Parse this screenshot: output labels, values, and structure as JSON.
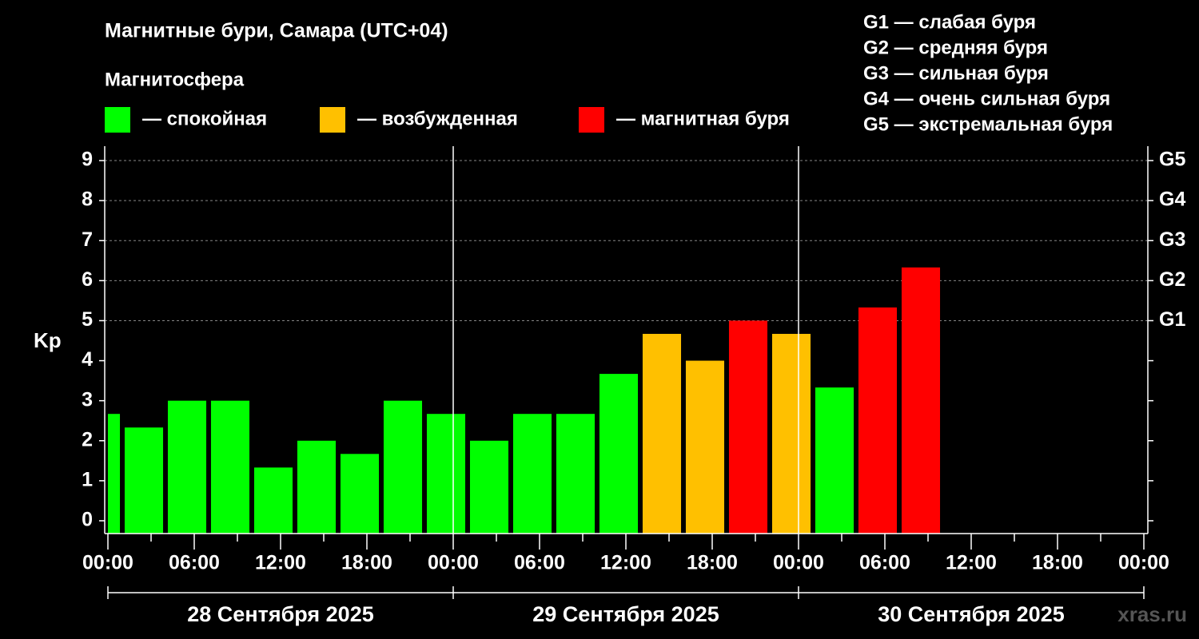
{
  "chart_data": {
    "type": "bar",
    "title": "Магнитные бури, Самара (UTC+04)",
    "subtitle": "Магнитосфера",
    "ylabel": "Kp",
    "watermark": "xras.ru",
    "legend": [
      {
        "name": "— спокойная",
        "color": "#00ff00"
      },
      {
        "name": "— возбужденная",
        "color": "#ffc000"
      },
      {
        "name": "— магнитная буря",
        "color": "#ff0000"
      }
    ],
    "notes": [
      "G1 — слабая буря",
      "G2 — средняя буря",
      "G3 — сильная буря",
      "G4 — очень сильная буря",
      "G5 — экстремальная буря"
    ],
    "x": [
      -0.5,
      2.5,
      5.5,
      8.5,
      11.5,
      14.5,
      17.5,
      20.5,
      23.5,
      26.5,
      29.5,
      32.5,
      35.5,
      38.5,
      41.5,
      44.5,
      47.5,
      50.5,
      53.5,
      56.5
    ],
    "values": [
      2.67,
      2.33,
      3.0,
      3.0,
      1.33,
      2.0,
      1.67,
      3.0,
      2.67,
      2.0,
      2.67,
      2.67,
      3.67,
      4.67,
      4.0,
      5.0,
      4.67,
      3.33,
      5.33,
      6.33
    ],
    "colors": [
      "#00ff00",
      "#00ff00",
      "#00ff00",
      "#00ff00",
      "#00ff00",
      "#00ff00",
      "#00ff00",
      "#00ff00",
      "#00ff00",
      "#00ff00",
      "#00ff00",
      "#00ff00",
      "#00ff00",
      "#ffc000",
      "#ffc000",
      "#ff0000",
      "#ffc000",
      "#00ff00",
      "#ff0000",
      "#ff0000"
    ],
    "xlim": [
      0,
      72
    ],
    "xticks": [
      {
        "value": 0,
        "label": "00:00"
      },
      {
        "value": 6,
        "label": "06:00"
      },
      {
        "value": 12,
        "label": "12:00"
      },
      {
        "value": 18,
        "label": "18:00"
      },
      {
        "value": 24,
        "label": "00:00"
      },
      {
        "value": 30,
        "label": "06:00"
      },
      {
        "value": 36,
        "label": "12:00"
      },
      {
        "value": 42,
        "label": "18:00"
      },
      {
        "value": 48,
        "label": "00:00"
      },
      {
        "value": 54,
        "label": "06:00"
      },
      {
        "value": 60,
        "label": "12:00"
      },
      {
        "value": 66,
        "label": "18:00"
      },
      {
        "value": 72,
        "label": "00:00"
      }
    ],
    "xminorticks": [
      3,
      9,
      15,
      21,
      27,
      33,
      39,
      45,
      51,
      57,
      63,
      69
    ],
    "day_separators": [
      24,
      48
    ],
    "dates": [
      "28 Сентября 2025",
      "29 Сентября 2025",
      "30 Сентября 2025"
    ],
    "ylim": [
      -0.32,
      9.36
    ],
    "yticks": [
      0,
      1,
      2,
      3,
      4,
      5,
      6,
      7,
      8,
      9
    ],
    "y2ticks": [
      {
        "value": 5,
        "label": "G1"
      },
      {
        "value": 6,
        "label": "G2"
      },
      {
        "value": 7,
        "label": "G3"
      },
      {
        "value": 8,
        "label": "G4"
      },
      {
        "value": 9,
        "label": "G5"
      }
    ],
    "grid": true
  }
}
